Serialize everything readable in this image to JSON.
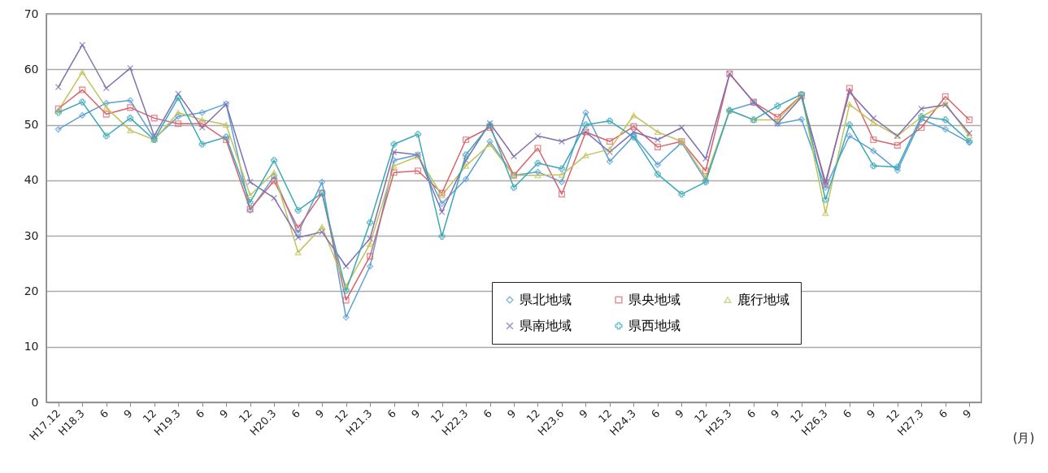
{
  "chart_data": {
    "type": "line",
    "categories": [
      "H17.12",
      "H18.3",
      "6",
      "9",
      "12",
      "H19.3",
      "6",
      "9",
      "12",
      "H20.3",
      "6",
      "9",
      "12",
      "H21.3",
      "6",
      "9",
      "12",
      "H22.3",
      "6",
      "9",
      "12",
      "H23.6",
      "9",
      "12",
      "H24.3",
      "6",
      "9",
      "12",
      "H25.3",
      "6",
      "9",
      "12",
      "H26.3",
      "6",
      "9",
      "12",
      "H27.3",
      "6",
      "9"
    ],
    "series": [
      {
        "name": "県北地域",
        "color": "#5aa0d8",
        "marker": "diamond",
        "values": [
          49.2,
          51.7,
          53.9,
          54.4,
          47.5,
          51.5,
          52.2,
          53.8,
          34.6,
          40.7,
          30.5,
          39.7,
          15.3,
          24.5,
          43.6,
          44.6,
          35.8,
          40.2,
          47,
          40.9,
          41.5,
          39.7,
          52.2,
          43.4,
          48,
          42.8,
          46.8,
          40,
          52.6,
          53.9,
          50.2,
          51,
          38.7,
          48,
          45.3,
          41.8,
          51,
          49.2,
          46.8
        ]
      },
      {
        "name": "県央地域",
        "color": "#d9626a",
        "marker": "square",
        "values": [
          52.9,
          56.3,
          51.9,
          53.1,
          51.2,
          50.2,
          50.2,
          47.3,
          34.8,
          39.9,
          31.4,
          37.7,
          18.4,
          26.3,
          41.4,
          41.7,
          37.7,
          47.3,
          49.5,
          40.9,
          45.8,
          37.5,
          48.7,
          47,
          49.7,
          46,
          47,
          41.7,
          59.2,
          54.1,
          51.4,
          55.3,
          39.2,
          56.6,
          47.3,
          46.3,
          49.5,
          55.1,
          50.9
        ]
      },
      {
        "name": "鹿行地域",
        "color": "#c2c25a",
        "marker": "triangle",
        "values": [
          52.6,
          59.5,
          53.1,
          49,
          47.3,
          52.2,
          50.9,
          50,
          37.3,
          41.4,
          27,
          31.6,
          20.9,
          28.5,
          42.6,
          44.3,
          37.3,
          42.6,
          46.5,
          40.9,
          40.9,
          41,
          44.5,
          45.6,
          51.7,
          48.7,
          47,
          40.5,
          52.6,
          50.9,
          50.9,
          55.3,
          34.1,
          53.7,
          50.4,
          48,
          51.4,
          53.9,
          48
        ]
      },
      {
        "name": "県南地域",
        "color": "#8070b0",
        "marker": "cross",
        "values": [
          56.8,
          64.4,
          56.6,
          60.2,
          48,
          55.6,
          49.5,
          53.7,
          39.7,
          36.8,
          29.7,
          30.7,
          24.5,
          29.5,
          45.1,
          44.6,
          34.3,
          43.6,
          50.3,
          44.3,
          48,
          47,
          48.7,
          45.1,
          48.7,
          47.3,
          49.5,
          43.9,
          59.2,
          54.1,
          50.2,
          55,
          39.7,
          55.9,
          51.2,
          48,
          52.9,
          53.6,
          48.5
        ]
      },
      {
        "name": "県西地域",
        "color": "#3aa8b8",
        "marker": "plus",
        "values": [
          52.2,
          54.1,
          48,
          51.2,
          47.3,
          54.9,
          46.5,
          47.8,
          36,
          43.6,
          34.6,
          37.7,
          20.1,
          32.4,
          46.5,
          48.3,
          29.9,
          44.6,
          50,
          38.7,
          43.1,
          42.1,
          50,
          50.7,
          47.8,
          41.1,
          37.5,
          39.7,
          52.6,
          50.9,
          53.4,
          55.5,
          36.5,
          50,
          42.6,
          42.4,
          51.5,
          50.9,
          47
        ]
      }
    ],
    "ylim": [
      0,
      70
    ],
    "yticks": [
      0,
      10,
      20,
      30,
      40,
      50,
      60,
      70
    ],
    "grid": "y",
    "legend": "bottom right",
    "annotations": [
      "(月)"
    ]
  }
}
